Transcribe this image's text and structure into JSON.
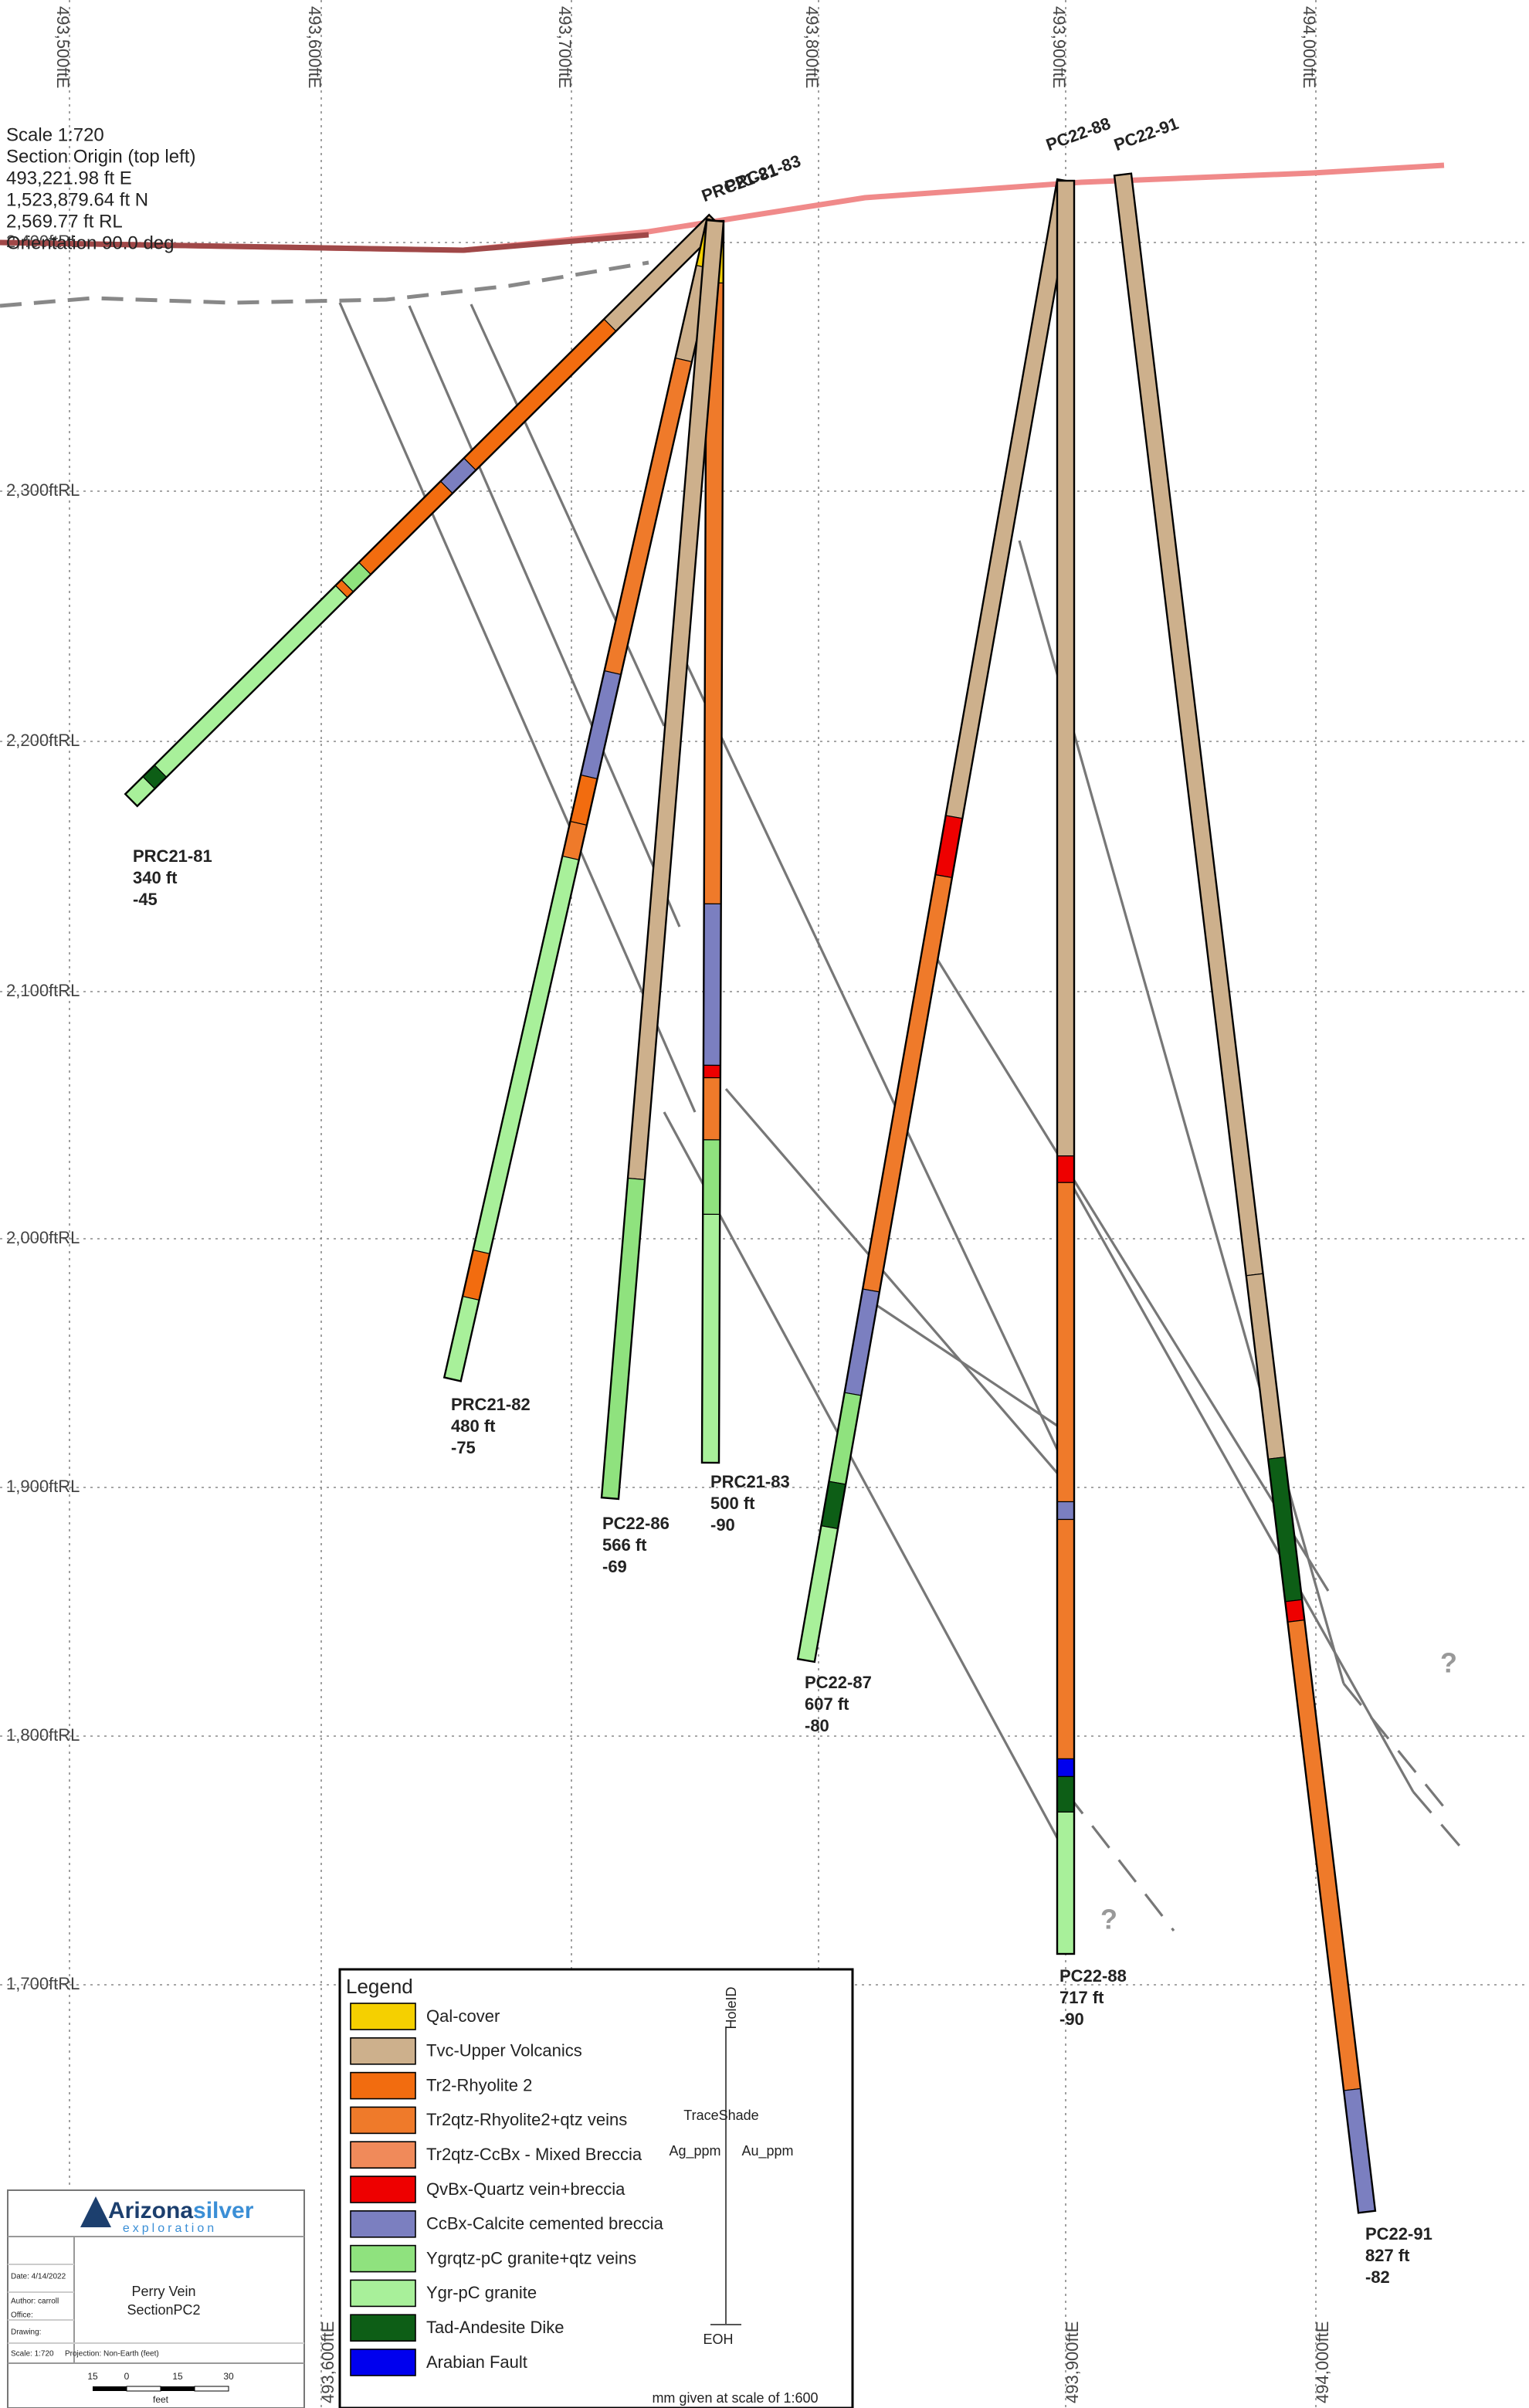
{
  "header": {
    "scale": "Scale 1:720",
    "origin_title": "Section Origin (top left)",
    "easting": "493,221.98 ft E",
    "northing": "1,523,879.64 ft N",
    "elevation": "2,569.77 ft RL",
    "orientation": "Orientation 90.0 deg"
  },
  "easting_labels_top": [
    "493,500ftE",
    "493,600ftE",
    "493,700ftE",
    "493,800ftE",
    "493,900ftE",
    "494,000ftE"
  ],
  "easting_labels_bottom": [
    "493,600ftE",
    "493,900ftE",
    "494,000ftE"
  ],
  "rl_labels": [
    "2,400ftRL",
    "2,300ftRL",
    "2,200ftRL",
    "2,100ftRL",
    "2,000ftRL",
    "1,900ftRL",
    "1,800ftRL",
    "1,700ftRL"
  ],
  "holes": [
    {
      "id": "PRC21-81",
      "length": "340 ft",
      "dip": "-45"
    },
    {
      "id": "PRC21-82",
      "length": "480 ft",
      "dip": "-75"
    },
    {
      "id": "PRC21-83",
      "length": "500 ft",
      "dip": "-90"
    },
    {
      "id": "PC22-86",
      "length": "566 ft",
      "dip": "-69"
    },
    {
      "id": "PC22-87",
      "length": "607 ft",
      "dip": "-80"
    },
    {
      "id": "PC22-88",
      "length": "717 ft",
      "dip": "-90"
    },
    {
      "id": "PC22-91",
      "length": "827 ft",
      "dip": "-82"
    }
  ],
  "question_marks": [
    "?",
    "?"
  ],
  "legend": {
    "title": "Legend",
    "items": [
      {
        "label": "Qal-cover",
        "color": "#f5d000"
      },
      {
        "label": "Tvc-Upper Volcanics",
        "color": "#cdb08c"
      },
      {
        "label": "Tr2-Rhyolite 2",
        "color": "#f26c0f"
      },
      {
        "label": "Tr2qtz-Rhyolite2+qtz veins",
        "color": "#ef7a2a"
      },
      {
        "label": "Tr2qtz-CcBx - Mixed Breccia",
        "color": "#f08a5a"
      },
      {
        "label": "QvBx-Quartz vein+breccia",
        "color": "#ee0000"
      },
      {
        "label": "CcBx-Calcite cemented breccia",
        "color": "#7b7fc0"
      },
      {
        "label": "Ygrqtz-pC granite+qtz veins",
        "color": "#8fe27e"
      },
      {
        "label": "Ygr-pC granite",
        "color": "#a8f09a"
      },
      {
        "label": "Tad-Andesite Dike",
        "color": "#0d5e16"
      },
      {
        "label": "Arabian Fault",
        "color": "#0000ee"
      }
    ],
    "trace": {
      "hole_id": "HoleID",
      "shade": "TraceShade",
      "left": "Ag_ppm",
      "right": "Au_ppm",
      "end": "EOH"
    },
    "note": "mm given at scale of 1:600"
  },
  "title_block": {
    "logo_main": "Arizona",
    "logo_accent": "silver",
    "logo_sub": "exploration",
    "date": "Date: 4/14/2022",
    "author": "Author: carroll",
    "office": "Office:",
    "drawing": "Drawing:",
    "scale": "Scale: 1:720",
    "projection": "Projection: Non-Earth (feet)",
    "title": "Perry Vein",
    "subtitle": "SectionPC2",
    "scale_bar": [
      "15",
      "0",
      "15",
      "30"
    ],
    "scale_unit": "feet"
  }
}
